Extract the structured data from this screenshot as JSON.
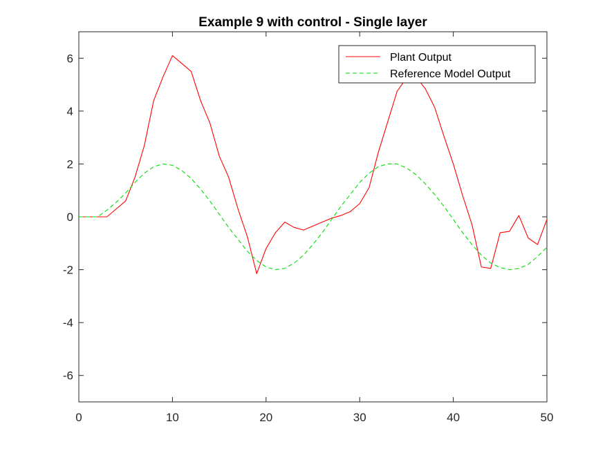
{
  "chart_data": {
    "type": "line",
    "title": "Example 9 with control - Single layer",
    "xlabel": "",
    "ylabel": "",
    "xlim": [
      0,
      50
    ],
    "ylim": [
      -7,
      7
    ],
    "xticks": [
      0,
      10,
      20,
      30,
      40,
      50
    ],
    "yticks": [
      -6,
      -4,
      -2,
      0,
      2,
      4,
      6
    ],
    "xtick_labels": [
      "0",
      "10",
      "20",
      "30",
      "40",
      "50"
    ],
    "ytick_labels": [
      "-6",
      "-4",
      "-2",
      "0",
      "2",
      "4",
      "6"
    ],
    "grid": false,
    "legend_position": "top-right",
    "series": [
      {
        "name": "Plant Output",
        "color": "#ff0000",
        "style": "solid",
        "x": [
          0,
          1,
          2,
          3,
          4,
          5,
          6,
          7,
          8,
          9,
          10,
          11,
          12,
          13,
          14,
          15,
          16,
          17,
          18,
          19,
          20,
          21,
          22,
          23,
          24,
          25,
          26,
          27,
          28,
          29,
          30,
          31,
          32,
          33,
          34,
          35,
          36,
          37,
          38,
          39,
          40,
          41,
          42,
          43,
          44,
          45,
          46,
          47,
          48,
          49,
          50
        ],
        "values": [
          0,
          0,
          0,
          0,
          0.3,
          0.6,
          1.5,
          2.7,
          4.4,
          5.3,
          6.1,
          5.8,
          5.5,
          4.4,
          3.55,
          2.3,
          1.5,
          0.3,
          -0.75,
          -2.15,
          -1.2,
          -0.6,
          -0.2,
          -0.4,
          -0.5,
          -0.35,
          -0.2,
          -0.05,
          0.05,
          0.2,
          0.5,
          1.1,
          2.45,
          3.6,
          4.75,
          5.25,
          5.3,
          4.85,
          4.15,
          3.05,
          2.0,
          0.8,
          -0.3,
          -1.9,
          -1.95,
          -0.6,
          -0.55,
          0.05,
          -0.8,
          -1.05,
          -0.1
        ]
      },
      {
        "name": "Reference Model Output",
        "color": "#00dd00",
        "style": "dashed",
        "x": [
          0,
          1,
          2,
          3,
          4,
          5,
          6,
          7,
          8,
          9,
          10,
          11,
          12,
          13,
          14,
          15,
          16,
          17,
          18,
          19,
          20,
          21,
          22,
          23,
          24,
          25,
          26,
          27,
          28,
          29,
          30,
          31,
          32,
          33,
          34,
          35,
          36,
          37,
          38,
          39,
          40,
          41,
          42,
          43,
          44,
          45,
          46,
          47,
          48,
          49,
          50
        ],
        "values": [
          0,
          0,
          0,
          0.25,
          0.55,
          0.9,
          1.3,
          1.65,
          1.9,
          2.0,
          1.95,
          1.75,
          1.45,
          1.05,
          0.6,
          0.1,
          -0.4,
          -0.85,
          -1.3,
          -1.65,
          -1.9,
          -2.0,
          -1.95,
          -1.75,
          -1.45,
          -1.05,
          -0.6,
          -0.1,
          0.4,
          0.85,
          1.3,
          1.65,
          1.9,
          2.0,
          2.0,
          1.85,
          1.6,
          1.25,
          0.85,
          0.4,
          -0.1,
          -0.6,
          -1.05,
          -1.45,
          -1.75,
          -1.92,
          -2.0,
          -1.95,
          -1.8,
          -1.5,
          -1.15
        ]
      }
    ]
  }
}
